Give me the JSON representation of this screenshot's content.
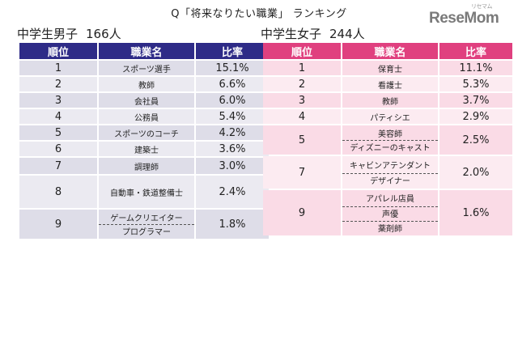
{
  "title": "Q「将来なりたい職業」 ランキング",
  "logo": {
    "text": "ReseMom",
    "kana": "リセマム"
  },
  "boys": {
    "caption": "中学生男子",
    "count": "166人",
    "headers": [
      "順位",
      "職業名",
      "比率"
    ],
    "rows": [
      {
        "rank": "1",
        "jobs": [
          "スポーツ選手"
        ],
        "rate": "15.1%"
      },
      {
        "rank": "2",
        "jobs": [
          "教師"
        ],
        "rate": "6.6%"
      },
      {
        "rank": "3",
        "jobs": [
          "会社員"
        ],
        "rate": "6.0%"
      },
      {
        "rank": "4",
        "jobs": [
          "公務員"
        ],
        "rate": "5.4%"
      },
      {
        "rank": "5",
        "jobs": [
          "スポーツのコーチ"
        ],
        "rate": "4.2%"
      },
      {
        "rank": "6",
        "jobs": [
          "建築士"
        ],
        "rate": "3.6%"
      },
      {
        "rank": "7",
        "jobs": [
          "調理師"
        ],
        "rate": "3.0%"
      },
      {
        "rank": "8",
        "jobs": [
          "自動車・鉄道整備士"
        ],
        "rate": "2.4%"
      },
      {
        "rank": "9",
        "jobs": [
          "ゲームクリエイター",
          "プログラマー"
        ],
        "rate": "1.8%"
      }
    ]
  },
  "girls": {
    "caption": "中学生女子",
    "count": "244人",
    "headers": [
      "順位",
      "職業名",
      "比率"
    ],
    "rows": [
      {
        "rank": "1",
        "jobs": [
          "保育士"
        ],
        "rate": "11.1%"
      },
      {
        "rank": "2",
        "jobs": [
          "看護士"
        ],
        "rate": "5.3%"
      },
      {
        "rank": "3",
        "jobs": [
          "教師"
        ],
        "rate": "3.7%"
      },
      {
        "rank": "4",
        "jobs": [
          "パティシエ"
        ],
        "rate": "2.9%"
      },
      {
        "rank": "5",
        "jobs": [
          "美容師",
          "ディズニーのキャスト"
        ],
        "rate": "2.5%"
      },
      {
        "rank": "7",
        "jobs": [
          "キャビンアテンダント",
          "デザイナー"
        ],
        "rate": "2.0%"
      },
      {
        "rank": "9",
        "jobs": [
          "アパレル店員",
          "声優",
          "薬剤師"
        ],
        "rate": "1.6%"
      }
    ]
  }
}
